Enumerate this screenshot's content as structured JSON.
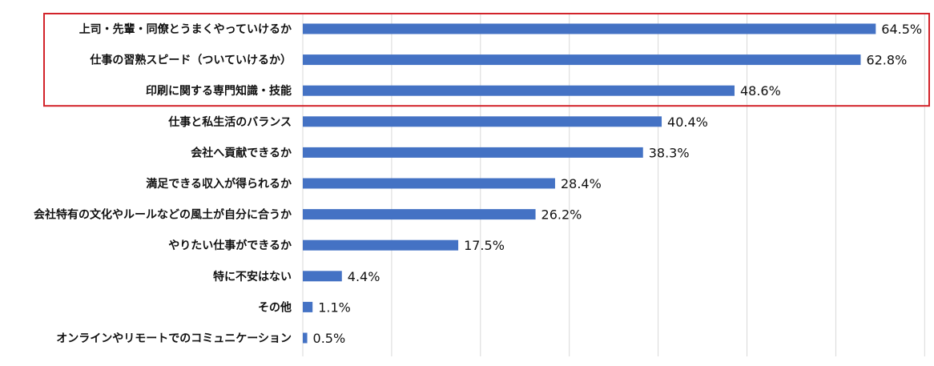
{
  "chart_data": {
    "type": "bar",
    "orientation": "horizontal",
    "categories": [
      "上司・先輩・同僚とうまくやっていけるか",
      "仕事の習熟スピード（ついていけるか）",
      "印刷に関する専門知識・技能",
      "仕事と私生活のバランス",
      "会社へ貢献できるか",
      "満足できる収入が得られるか",
      "会社特有の文化やルールなどの風土が自分に合うか",
      "やりたい仕事ができるか",
      "特に不安はない",
      "その他",
      "オンラインやリモートでのコミュニケーション"
    ],
    "values": [
      64.5,
      62.8,
      48.6,
      40.4,
      38.3,
      28.4,
      26.2,
      17.5,
      4.4,
      1.1,
      0.5
    ],
    "value_labels": [
      "64.5%",
      "62.8%",
      "48.6%",
      "40.4%",
      "38.3%",
      "28.4%",
      "26.2%",
      "17.5%",
      "4.4%",
      "1.1%",
      "0.5%"
    ],
    "title": "",
    "xlabel": "",
    "ylabel": "",
    "xlim": [
      0,
      70
    ],
    "grid": true,
    "highlighted_categories": [
      0,
      1,
      2
    ],
    "colors": {
      "bar": "#4472c4",
      "highlight_border": "#d2232a",
      "grid": "#d9d9d9",
      "text": "#111111"
    }
  }
}
